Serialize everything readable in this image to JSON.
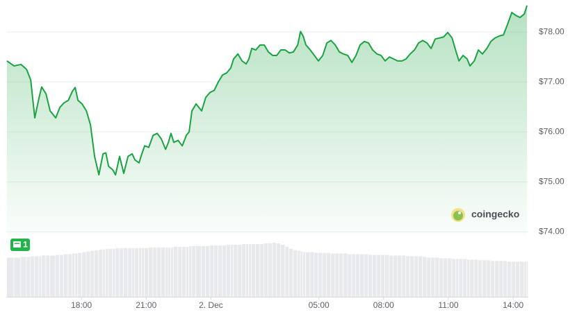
{
  "chart_data": {
    "type": "line",
    "x": [
      14.55,
      14.88,
      15.2,
      15.46,
      15.65,
      15.84,
      16.04,
      16.16,
      16.36,
      16.55,
      16.81,
      17.0,
      17.19,
      17.39,
      17.58,
      17.71,
      17.84,
      18.03,
      18.23,
      18.42,
      18.61,
      18.81,
      19.0,
      19.13,
      19.26,
      19.45,
      19.58,
      19.77,
      19.96,
      20.16,
      20.35,
      20.48,
      20.67,
      20.8,
      20.93,
      21.12,
      21.32,
      21.51,
      21.7,
      21.9,
      22.03,
      22.15,
      22.28,
      22.48,
      22.67,
      22.86,
      22.99,
      23.12,
      23.31,
      23.57,
      23.76,
      23.96,
      24.15,
      24.34,
      24.54,
      24.73,
      24.92,
      25.05,
      25.25,
      25.44,
      25.63,
      25.76,
      25.89,
      26.08,
      26.28,
      26.47,
      26.66,
      26.86,
      27.05,
      27.24,
      27.44,
      27.63,
      27.82,
      28.02,
      28.15,
      28.27,
      28.4,
      28.6,
      28.79,
      28.98,
      29.18,
      29.37,
      29.56,
      29.76,
      29.95,
      30.14,
      30.34,
      30.53,
      30.72,
      30.91,
      31.11,
      31.3,
      31.49,
      31.69,
      31.88,
      32.07,
      32.27,
      32.46,
      32.65,
      32.85,
      33.04,
      33.23,
      33.43,
      33.62,
      33.81,
      34.01,
      34.2,
      34.39,
      34.59,
      34.78,
      34.97,
      35.17,
      35.36,
      35.49,
      35.68,
      35.87,
      36.0,
      36.2,
      36.39,
      36.58,
      36.78,
      36.97,
      37.16,
      37.36,
      37.55,
      37.74,
      37.94,
      38.13,
      38.32,
      38.52,
      38.64
    ],
    "series": [
      {
        "color": "#1aa341",
        "values": [
          77.42,
          77.32,
          77.35,
          77.25,
          77.04,
          76.28,
          76.69,
          76.9,
          76.76,
          76.42,
          76.28,
          76.49,
          76.58,
          76.63,
          76.81,
          76.89,
          76.63,
          76.56,
          76.42,
          76.14,
          75.51,
          75.14,
          75.56,
          75.58,
          75.31,
          75.24,
          75.14,
          75.51,
          75.17,
          75.51,
          75.56,
          75.44,
          75.38,
          75.56,
          75.72,
          75.69,
          75.93,
          75.97,
          75.86,
          75.65,
          75.79,
          75.97,
          75.79,
          75.83,
          75.72,
          75.93,
          76.0,
          76.42,
          76.56,
          76.42,
          76.69,
          76.79,
          76.83,
          77.0,
          77.14,
          77.18,
          77.28,
          77.46,
          77.56,
          77.42,
          77.36,
          77.46,
          77.67,
          77.64,
          77.74,
          77.74,
          77.6,
          77.53,
          77.53,
          77.64,
          77.64,
          77.58,
          77.6,
          77.74,
          78.01,
          77.92,
          77.74,
          77.64,
          77.53,
          77.42,
          77.53,
          77.78,
          77.83,
          77.74,
          77.6,
          77.56,
          77.53,
          77.39,
          77.53,
          77.74,
          77.81,
          77.78,
          77.64,
          77.56,
          77.53,
          77.42,
          77.5,
          77.46,
          77.42,
          77.42,
          77.46,
          77.56,
          77.64,
          77.78,
          77.83,
          77.78,
          77.67,
          77.86,
          77.88,
          77.9,
          77.99,
          77.88,
          77.6,
          77.42,
          77.53,
          77.46,
          77.32,
          77.42,
          77.64,
          77.56,
          77.67,
          77.81,
          77.88,
          77.92,
          77.94,
          78.15,
          78.39,
          78.33,
          78.29,
          78.36,
          78.53
        ]
      }
    ],
    "volume": {
      "color": "#e8e9ec",
      "ylim": [
        0,
        80
      ],
      "values": [
        58,
        58,
        59,
        59,
        60,
        60,
        60,
        61,
        61,
        61,
        62,
        62,
        63,
        63,
        64,
        64,
        65,
        66,
        67,
        68,
        69,
        70,
        70,
        71,
        71,
        71,
        72,
        72,
        72,
        72,
        72,
        72,
        72,
        72,
        72,
        73,
        73,
        73,
        73,
        73,
        73,
        73,
        74,
        74,
        74,
        74,
        75,
        75,
        75,
        75,
        75,
        76,
        76,
        76,
        76,
        77,
        77,
        77,
        77,
        78,
        78,
        78,
        78,
        78,
        78,
        79,
        79,
        80,
        79,
        77,
        74,
        71,
        69,
        68,
        67,
        66,
        66,
        66,
        65,
        65,
        65,
        65,
        64,
        64,
        64,
        64,
        63,
        63,
        63,
        63,
        63,
        62,
        62,
        62,
        62,
        62,
        61,
        61,
        61,
        61,
        60,
        60,
        60,
        60,
        59,
        58,
        58,
        58,
        57,
        57,
        57,
        56,
        56,
        56,
        56,
        55,
        55,
        55,
        54,
        54,
        54,
        53,
        53,
        53,
        53,
        52,
        52,
        52,
        52,
        52,
        52
      ]
    },
    "xlim": [
      14.55,
      38.64
    ],
    "xticks": [
      {
        "value": 18,
        "label": "18:00"
      },
      {
        "value": 21,
        "label": "21:00"
      },
      {
        "value": 24,
        "label": "2. Dec"
      },
      {
        "value": 29,
        "label": "05:00"
      },
      {
        "value": 32,
        "label": "08:00"
      },
      {
        "value": 35,
        "label": "11:00"
      },
      {
        "value": 38,
        "label": "14:00"
      }
    ],
    "ylim": [
      73.92,
      78.64
    ],
    "yticks": [
      {
        "value": 74,
        "label": "$74.00"
      },
      {
        "value": 75,
        "label": "$75.00"
      },
      {
        "value": 76,
        "label": "$76.00"
      },
      {
        "value": 77,
        "label": "$77.00"
      },
      {
        "value": 78,
        "label": "$78.00"
      }
    ],
    "grid": true,
    "watermark": "coingecko",
    "badge": "1"
  }
}
